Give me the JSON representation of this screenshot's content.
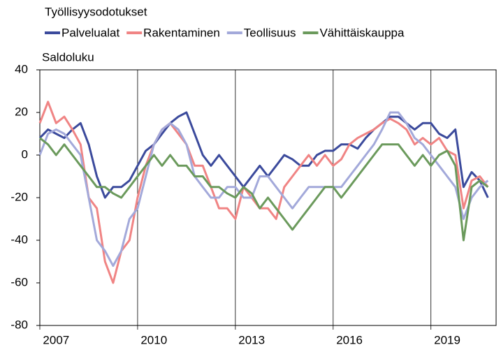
{
  "chart_data": {
    "type": "line",
    "title": "Työllisyysodotukset",
    "y_label": "Saldoluku",
    "x": [
      2007,
      2007.25,
      2007.5,
      2007.75,
      2008,
      2008.25,
      2008.5,
      2008.75,
      2009,
      2009.25,
      2009.5,
      2009.75,
      2010,
      2010.25,
      2010.5,
      2010.75,
      2011,
      2011.25,
      2011.5,
      2011.75,
      2012,
      2012.25,
      2012.5,
      2012.75,
      2013,
      2013.25,
      2013.5,
      2013.75,
      2014,
      2014.25,
      2014.5,
      2014.75,
      2015,
      2015.25,
      2015.5,
      2015.75,
      2016,
      2016.25,
      2016.5,
      2016.75,
      2017,
      2017.25,
      2017.5,
      2017.75,
      2018,
      2018.25,
      2018.5,
      2018.75,
      2019,
      2019.25,
      2019.5,
      2019.75,
      2020,
      2020.25,
      2020.5,
      2020.75
    ],
    "series": [
      {
        "name": "Palvelualat",
        "color": "#3b4a9c",
        "values": [
          8,
          12,
          10,
          8,
          12,
          15,
          5,
          -10,
          -20,
          -15,
          -15,
          -12,
          -5,
          2,
          5,
          10,
          15,
          18,
          20,
          10,
          0,
          -5,
          0,
          -5,
          -10,
          -15,
          -10,
          -5,
          -10,
          -5,
          0,
          -2,
          -5,
          -5,
          0,
          2,
          2,
          5,
          5,
          3,
          8,
          12,
          15,
          18,
          18,
          15,
          12,
          15,
          15,
          10,
          8,
          12,
          -15,
          -8,
          -12,
          -20
        ]
      },
      {
        "name": "Rakentaminen",
        "color": "#f08484",
        "values": [
          15,
          25,
          15,
          18,
          12,
          5,
          -20,
          -25,
          -50,
          -60,
          -45,
          -40,
          -20,
          -5,
          5,
          12,
          15,
          10,
          5,
          -5,
          -5,
          -15,
          -25,
          -25,
          -30,
          -15,
          -20,
          -25,
          -25,
          -30,
          -15,
          -10,
          -5,
          0,
          -5,
          0,
          -5,
          -2,
          5,
          8,
          10,
          12,
          15,
          17,
          15,
          12,
          5,
          8,
          5,
          8,
          2,
          0,
          -25,
          -12,
          -10,
          -15
        ]
      },
      {
        "name": "Teollisuus",
        "color": "#a3a9da",
        "values": [
          0,
          10,
          12,
          10,
          5,
          0,
          -20,
          -40,
          -45,
          -52,
          -45,
          -30,
          -25,
          -10,
          5,
          12,
          15,
          12,
          5,
          -10,
          -15,
          -20,
          -20,
          -15,
          -15,
          -20,
          -20,
          -10,
          -10,
          -15,
          -20,
          -25,
          -20,
          -15,
          -15,
          -15,
          -15,
          -15,
          -10,
          -5,
          0,
          5,
          12,
          20,
          20,
          15,
          8,
          5,
          0,
          -5,
          -10,
          -15,
          -30,
          -20,
          -15,
          -12
        ]
      },
      {
        "name": "Vähittäiskauppa",
        "color": "#6b9a5c",
        "values": [
          8,
          5,
          0,
          5,
          0,
          -5,
          -10,
          -15,
          -15,
          -18,
          -20,
          -15,
          -10,
          -5,
          0,
          -5,
          0,
          -5,
          -5,
          -10,
          -10,
          -15,
          -15,
          -18,
          -20,
          -15,
          -18,
          -25,
          -20,
          -25,
          -30,
          -35,
          -30,
          -25,
          -20,
          -15,
          -15,
          -20,
          -15,
          -10,
          -5,
          0,
          5,
          5,
          5,
          0,
          -5,
          0,
          -5,
          0,
          2,
          -5,
          -40,
          -15,
          -12,
          -15
        ]
      }
    ],
    "xlim": [
      2007,
      2021
    ],
    "xticks": [
      2007,
      2010,
      2013,
      2016,
      2019
    ],
    "ylim": [
      -80,
      40
    ],
    "yticks": [
      -80,
      -60,
      -40,
      -20,
      0,
      20,
      40
    ]
  }
}
